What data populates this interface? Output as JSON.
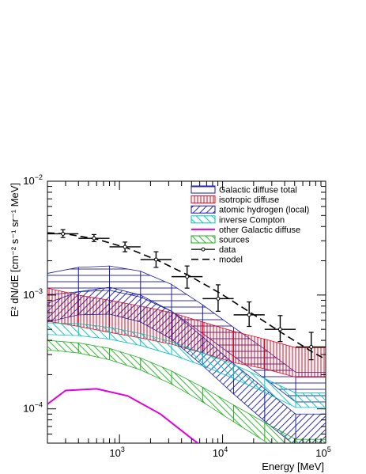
{
  "chart_data": {
    "type": "line",
    "xlabel": "Energy [MeV]",
    "ylabel": "E² dN/dE [cm⁻² s⁻¹ sr⁻¹ MeV]",
    "x_scale": "log",
    "y_scale": "log",
    "xlim": [
      200,
      100000
    ],
    "ylim": [
      5e-05,
      0.01
    ],
    "x_tick_labels": [
      {
        "value": 1000,
        "base": "10",
        "exp": "3"
      },
      {
        "value": 10000,
        "base": "10",
        "exp": "4"
      },
      {
        "value": 100000,
        "base": "10",
        "exp": "5"
      }
    ],
    "y_tick_labels": [
      {
        "value": 0.0001,
        "base": "10",
        "exp": "−4"
      },
      {
        "value": 0.001,
        "base": "10",
        "exp": "−3"
      },
      {
        "value": 0.01,
        "base": "10",
        "exp": "−2"
      }
    ],
    "legend": {
      "placement": "top-right"
    },
    "bins": [
      200,
      400,
      800,
      1600,
      3200,
      6400,
      12800,
      25600,
      51200,
      102400
    ],
    "bands": [
      {
        "name": "Galactic diffuse total",
        "color": "#1a1aa6",
        "hatch": "horizontal",
        "low": [
          0.001,
          0.00107,
          0.0011,
          0.00096,
          0.00072,
          0.00046,
          0.00029,
          0.000185,
          0.000115
        ],
        "high": [
          0.00155,
          0.00175,
          0.0018,
          0.00162,
          0.00124,
          0.00082,
          0.00052,
          0.000335,
          0.00021
        ]
      },
      {
        "name": "isotropic diffuse",
        "color": "#e8001c",
        "hatch": "vertical",
        "low": [
          0.00059,
          0.00053,
          0.00047,
          0.00042,
          0.00037,
          0.00031,
          0.000255,
          0.000225,
          0.00019
        ],
        "high": [
          0.00115,
          0.001,
          0.0009,
          0.0008,
          0.0007,
          0.00058,
          0.00048,
          0.00041,
          0.000345
        ]
      },
      {
        "name": "atomic hydrogen (local)",
        "color": "#1a1aa6",
        "hatch": "diagonal",
        "low": [
          0.00058,
          0.00067,
          0.00068,
          0.00058,
          0.00041,
          0.00024,
          0.000135,
          7.8e-05,
          4.7e-05
        ],
        "high": [
          0.00085,
          0.00107,
          0.00117,
          0.001,
          0.00072,
          0.00043,
          0.00025,
          0.00015,
          9e-05
        ]
      },
      {
        "name": "inverse Compton",
        "color": "#00c0c0",
        "hatch": "diagonal",
        "low": [
          0.00045,
          0.00044,
          0.00041,
          0.00036,
          0.0003,
          0.00024,
          0.000185,
          0.00014,
          0.000103
        ],
        "high": [
          0.00057,
          0.00056,
          0.00052,
          0.00046,
          0.00039,
          0.00031,
          0.000245,
          0.000185,
          0.000138
        ]
      },
      {
        "name": "other Galactic diffuse",
        "color": "#e000e0",
        "hatch": "line",
        "x": [
          200,
          300,
          600,
          1200,
          2500,
          5000,
          8000
        ],
        "y": [
          0.00011,
          0.000145,
          0.00015,
          0.00013,
          9e-05,
          5.5e-05,
          4e-05
        ]
      },
      {
        "name": "sources",
        "color": "#20b020",
        "hatch": "diagonal",
        "low": [
          0.00033,
          0.00031,
          0.00027,
          0.00022,
          0.000165,
          0.000115,
          7.7e-05,
          5.2e-05,
          3.6e-05
        ],
        "high": [
          0.0004,
          0.00038,
          0.00034,
          0.00028,
          0.000215,
          0.000155,
          0.000108,
          7.6e-05,
          5.4e-05
        ]
      }
    ],
    "data": {
      "name": "data",
      "points": [
        {
          "x": 283,
          "y": 0.00345,
          "xlo": 200,
          "xhi": 400,
          "ylo": 0.0032,
          "yhi": 0.00375
        },
        {
          "x": 566,
          "y": 0.00315,
          "xlo": 400,
          "xhi": 800,
          "ylo": 0.00295,
          "yhi": 0.0034
        },
        {
          "x": 1131,
          "y": 0.00265,
          "xlo": 800,
          "xhi": 1600,
          "ylo": 0.0024,
          "yhi": 0.00292
        },
        {
          "x": 2263,
          "y": 0.00205,
          "xlo": 1600,
          "xhi": 3200,
          "ylo": 0.00175,
          "yhi": 0.0024
        },
        {
          "x": 4525,
          "y": 0.00145,
          "xlo": 3200,
          "xhi": 6400,
          "ylo": 0.00115,
          "yhi": 0.0018
        },
        {
          "x": 9051,
          "y": 0.00093,
          "xlo": 6400,
          "xhi": 12800,
          "ylo": 0.00072,
          "yhi": 0.00123
        },
        {
          "x": 18102,
          "y": 0.00067,
          "xlo": 12800,
          "xhi": 25600,
          "ylo": 0.00053,
          "yhi": 0.00087
        },
        {
          "x": 36204,
          "y": 0.0005,
          "xlo": 25600,
          "xhi": 51200,
          "ylo": 0.00039,
          "yhi": 0.00066
        },
        {
          "x": 72408,
          "y": 0.00035,
          "xlo": 51200,
          "xhi": 102400,
          "ylo": 0.00027,
          "yhi": 0.00047
        }
      ]
    },
    "model": {
      "name": "model",
      "x": [
        200,
        300,
        600,
        1200,
        2400,
        4800,
        9600,
        19200,
        38400,
        76800,
        102400
      ],
      "y": [
        0.00352,
        0.00345,
        0.0031,
        0.00258,
        0.002,
        0.00147,
        0.00103,
        0.00069,
        0.00046,
        0.00031,
        0.00027
      ]
    }
  }
}
